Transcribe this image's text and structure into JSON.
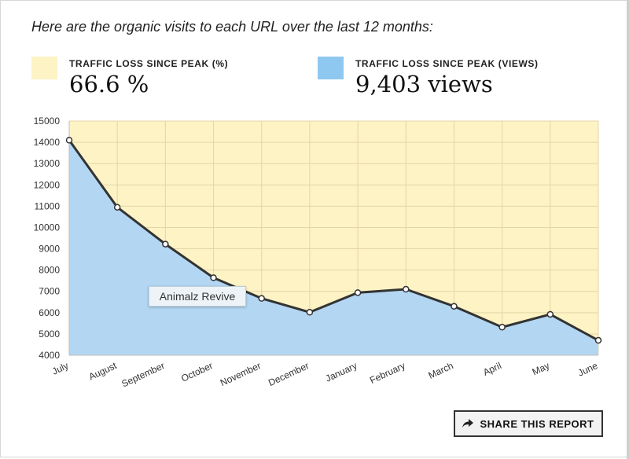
{
  "intro": "Here are the organic visits to each URL over the last 12 months:",
  "stats": {
    "loss_pct": {
      "label": "TRAFFIC LOSS SINCE PEAK (%)",
      "value": "66.6 %",
      "color": "#fdf3c4"
    },
    "loss_views": {
      "label": "TRAFFIC LOSS SINCE PEAK (VIEWS)",
      "value": "9,403 views",
      "color": "#8ec8f0"
    }
  },
  "tooltip": "Animalz Revive",
  "share_button": {
    "label": "SHARE THIS REPORT",
    "icon": "share-arrow-icon"
  },
  "chart_data": {
    "type": "area",
    "categories": [
      "July",
      "August",
      "September",
      "October",
      "November",
      "December",
      "January",
      "February",
      "March",
      "April",
      "May",
      "June"
    ],
    "series": [
      {
        "values": [
          14100,
          10950,
          9220,
          7640,
          6670,
          6020,
          6940,
          7100,
          6300,
          5320,
          5920,
          4700
        ],
        "color": "#b3d6f2"
      }
    ],
    "ylim": [
      4000,
      15000
    ],
    "yticks": [
      4000,
      5000,
      6000,
      7000,
      8000,
      9000,
      10000,
      11000,
      12000,
      13000,
      14000,
      15000
    ],
    "peak_fill_color": "#fdf3c4",
    "line_color": "#333333",
    "grid": true
  }
}
